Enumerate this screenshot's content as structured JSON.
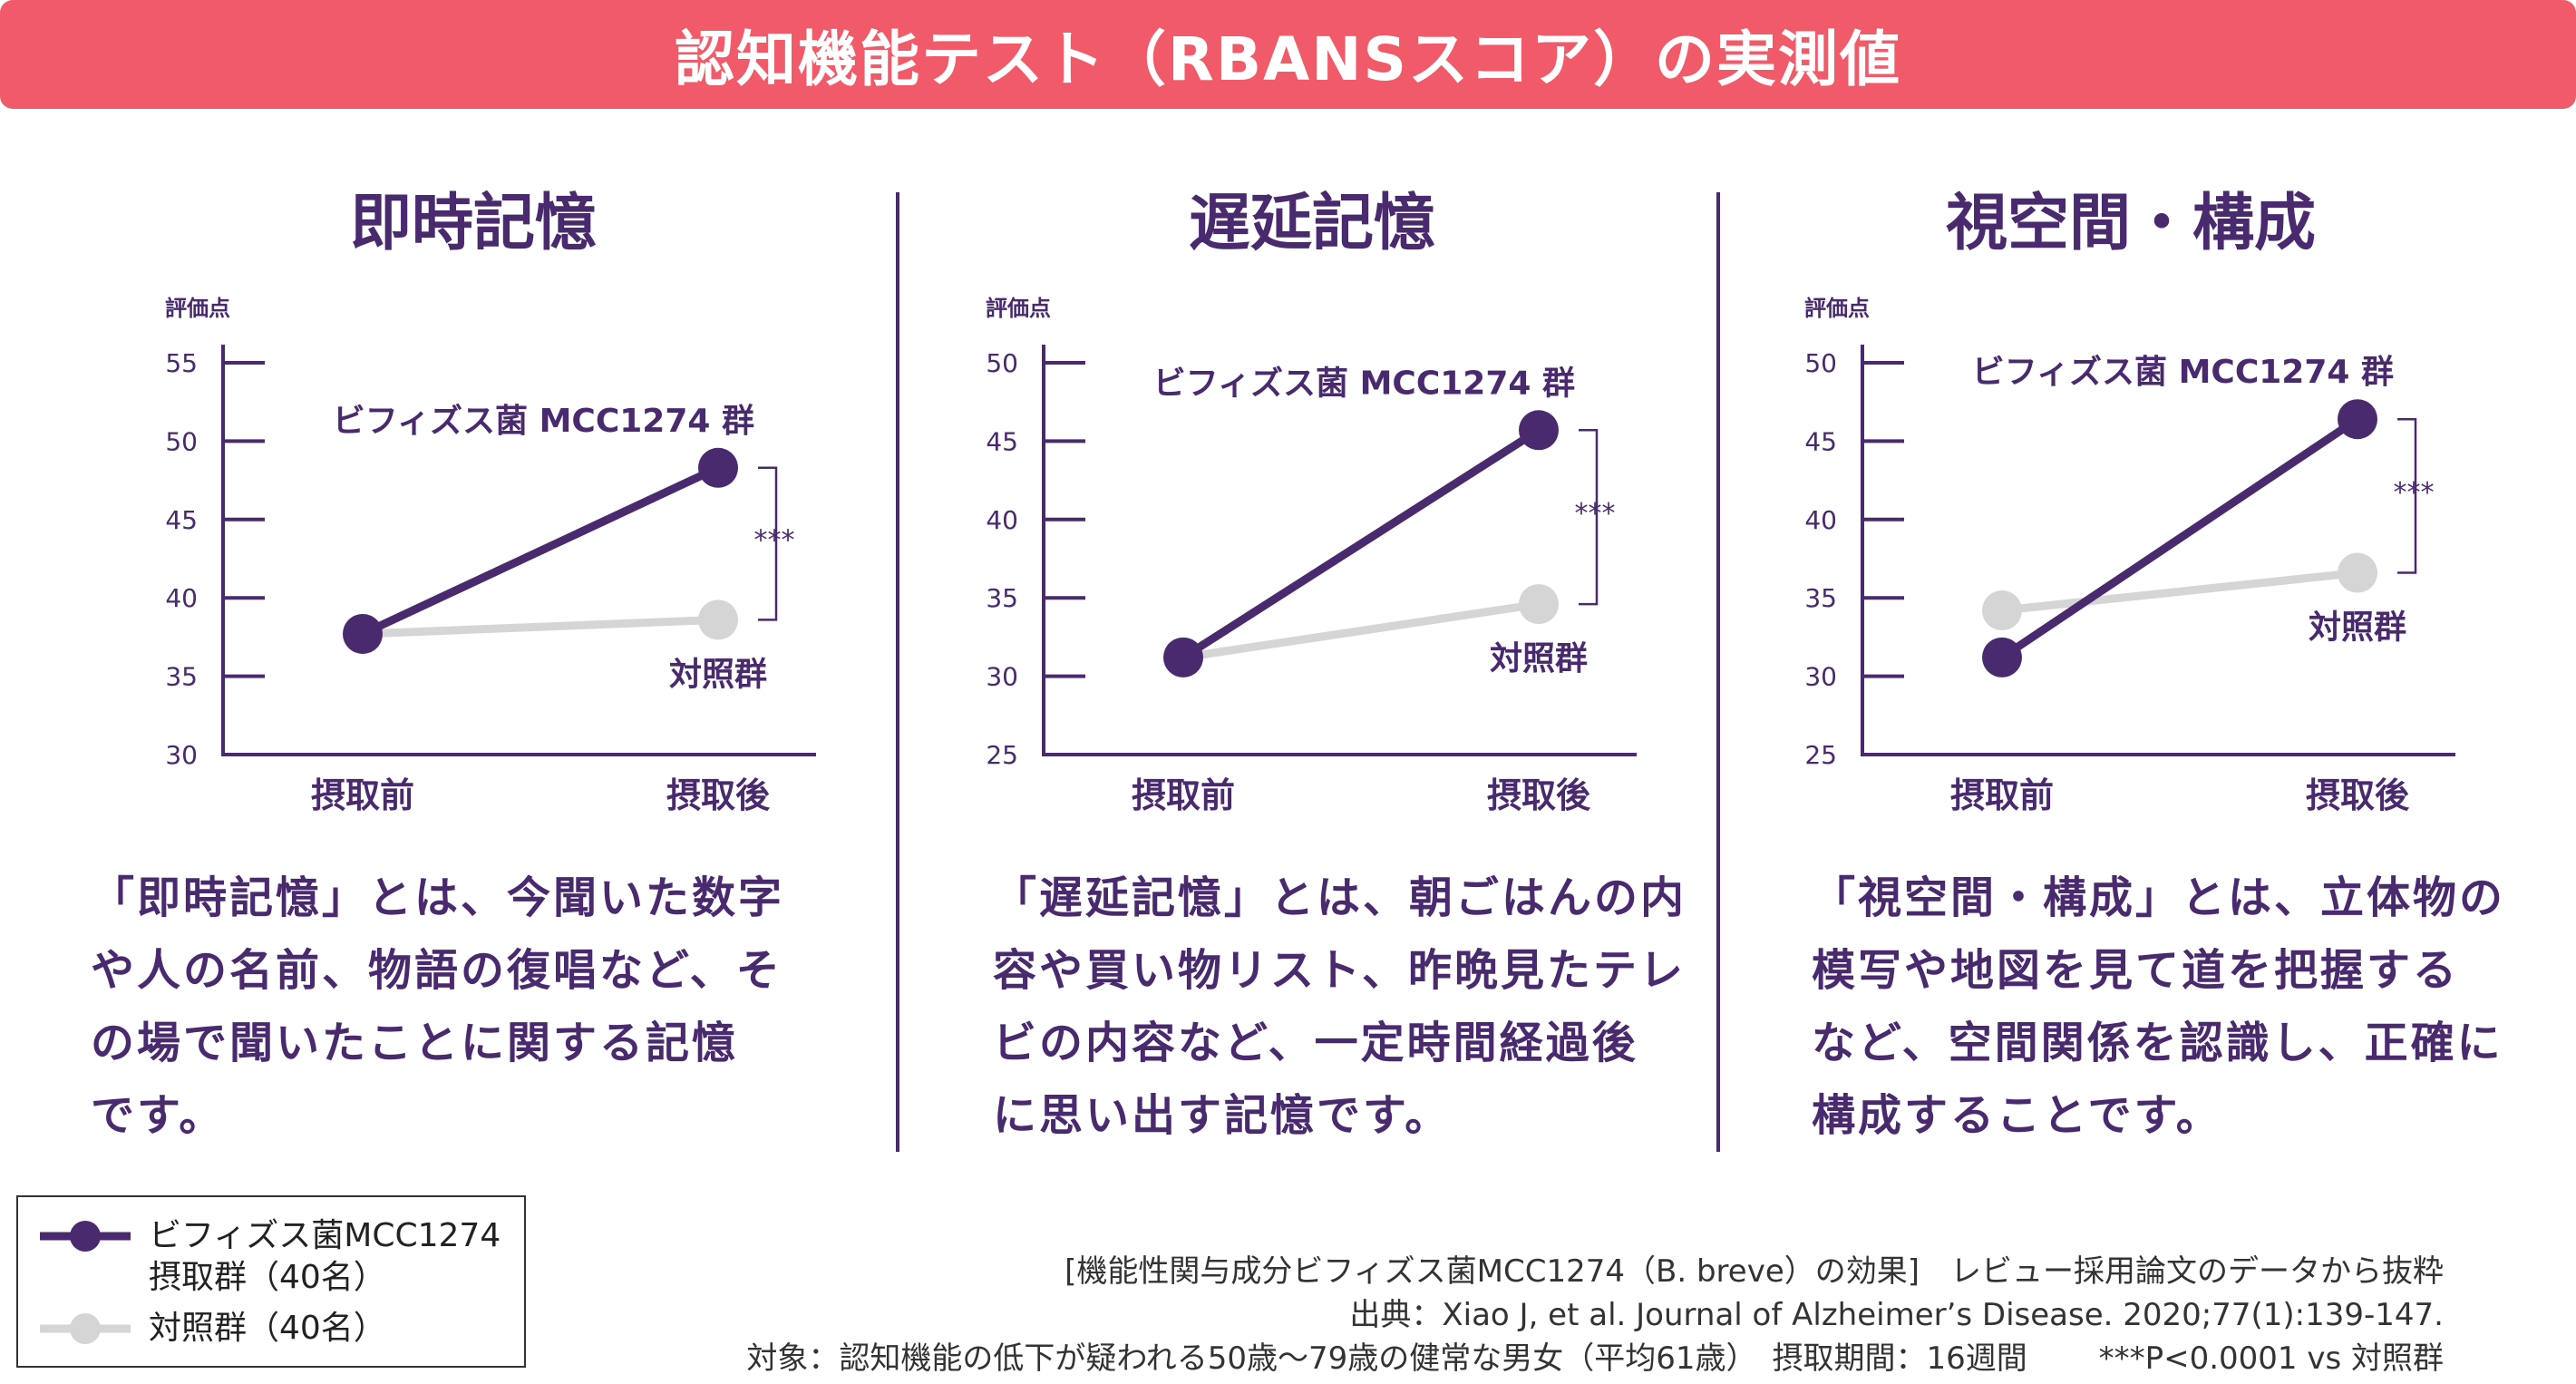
{
  "banner": {
    "title": "認知機能テスト（RBANSスコア）の実測値"
  },
  "panels": [
    {
      "title": "即時記憶",
      "desc_lines": [
        "「即時記憶」とは、今聞いた数字",
        "や人の名前、物語の復唱など、そ",
        "の場で聞いたことに関する記憶",
        "です。"
      ]
    },
    {
      "title": "遅延記憶",
      "desc_lines": [
        "「遅延記憶」とは、朝ごはんの内",
        "容や買い物リスト、昨晩見たテレ",
        "ビの内容など、一定時間経過後",
        "に思い出す記憶です。"
      ]
    },
    {
      "title": "視空間・構成",
      "desc_lines": [
        "「視空間・構成」とは、立体物の",
        "模写や地図を見て道を把握する",
        "など、空間関係を認識し、正確に",
        "構成することです。"
      ]
    }
  ],
  "chart_data": [
    {
      "type": "line",
      "title": "即時記憶",
      "ylabel": "評価点",
      "categories": [
        "摂取前",
        "摂取後"
      ],
      "ylim": [
        30,
        55
      ],
      "yticks": [
        30,
        35,
        40,
        45,
        50,
        55
      ],
      "series": [
        {
          "name": "ビフィズス菌 MCC1274 群",
          "values": [
            37.7,
            48.3
          ],
          "color": "#4a2a6e"
        },
        {
          "name": "対照群",
          "values": [
            37.7,
            38.6
          ],
          "color": "#d5d5d5"
        }
      ],
      "significance": "***"
    },
    {
      "type": "line",
      "title": "遅延記憶",
      "ylabel": "評価点",
      "categories": [
        "摂取前",
        "摂取後"
      ],
      "ylim": [
        25,
        50
      ],
      "yticks": [
        25,
        30,
        35,
        40,
        45,
        50
      ],
      "series": [
        {
          "name": "ビフィズス菌 MCC1274 群",
          "values": [
            31.2,
            45.7
          ],
          "color": "#4a2a6e"
        },
        {
          "name": "対照群",
          "values": [
            31.2,
            34.6
          ],
          "color": "#d5d5d5"
        }
      ],
      "significance": "***"
    },
    {
      "type": "line",
      "title": "視空間・構成",
      "ylabel": "評価点",
      "categories": [
        "摂取前",
        "摂取後"
      ],
      "ylim": [
        25,
        50
      ],
      "yticks": [
        25,
        30,
        35,
        40,
        45,
        50
      ],
      "series": [
        {
          "name": "ビフィズス菌 MCC1274 群",
          "values": [
            31.2,
            46.4
          ],
          "color": "#4a2a6e"
        },
        {
          "name": "対照群",
          "values": [
            34.2,
            36.6
          ],
          "color": "#d5d5d5"
        }
      ],
      "significance": "***"
    }
  ],
  "legend": {
    "treatment_line1": "ビフィズス菌MCC1274",
    "treatment_line2": "摂取群（40名）",
    "control": "対照群（40名）",
    "treatment_color": "#4a2a6e",
    "control_color": "#d5d5d5"
  },
  "footer": {
    "line1": "[機能性関与成分ビフィズス菌MCC1274（B. breve）の効果]　レビュー採用論文のデータから抜粋",
    "line2": "出典：Xiao J, et al. Journal of Alzheimer’s Disease. 2020;77(1):139-147.",
    "line3": "対象：認知機能の低下が疑われる50歳～79歳の健常な男女（平均61歳）　摂取期間：16週間　　 ***P<0.0001 vs 対照群"
  }
}
